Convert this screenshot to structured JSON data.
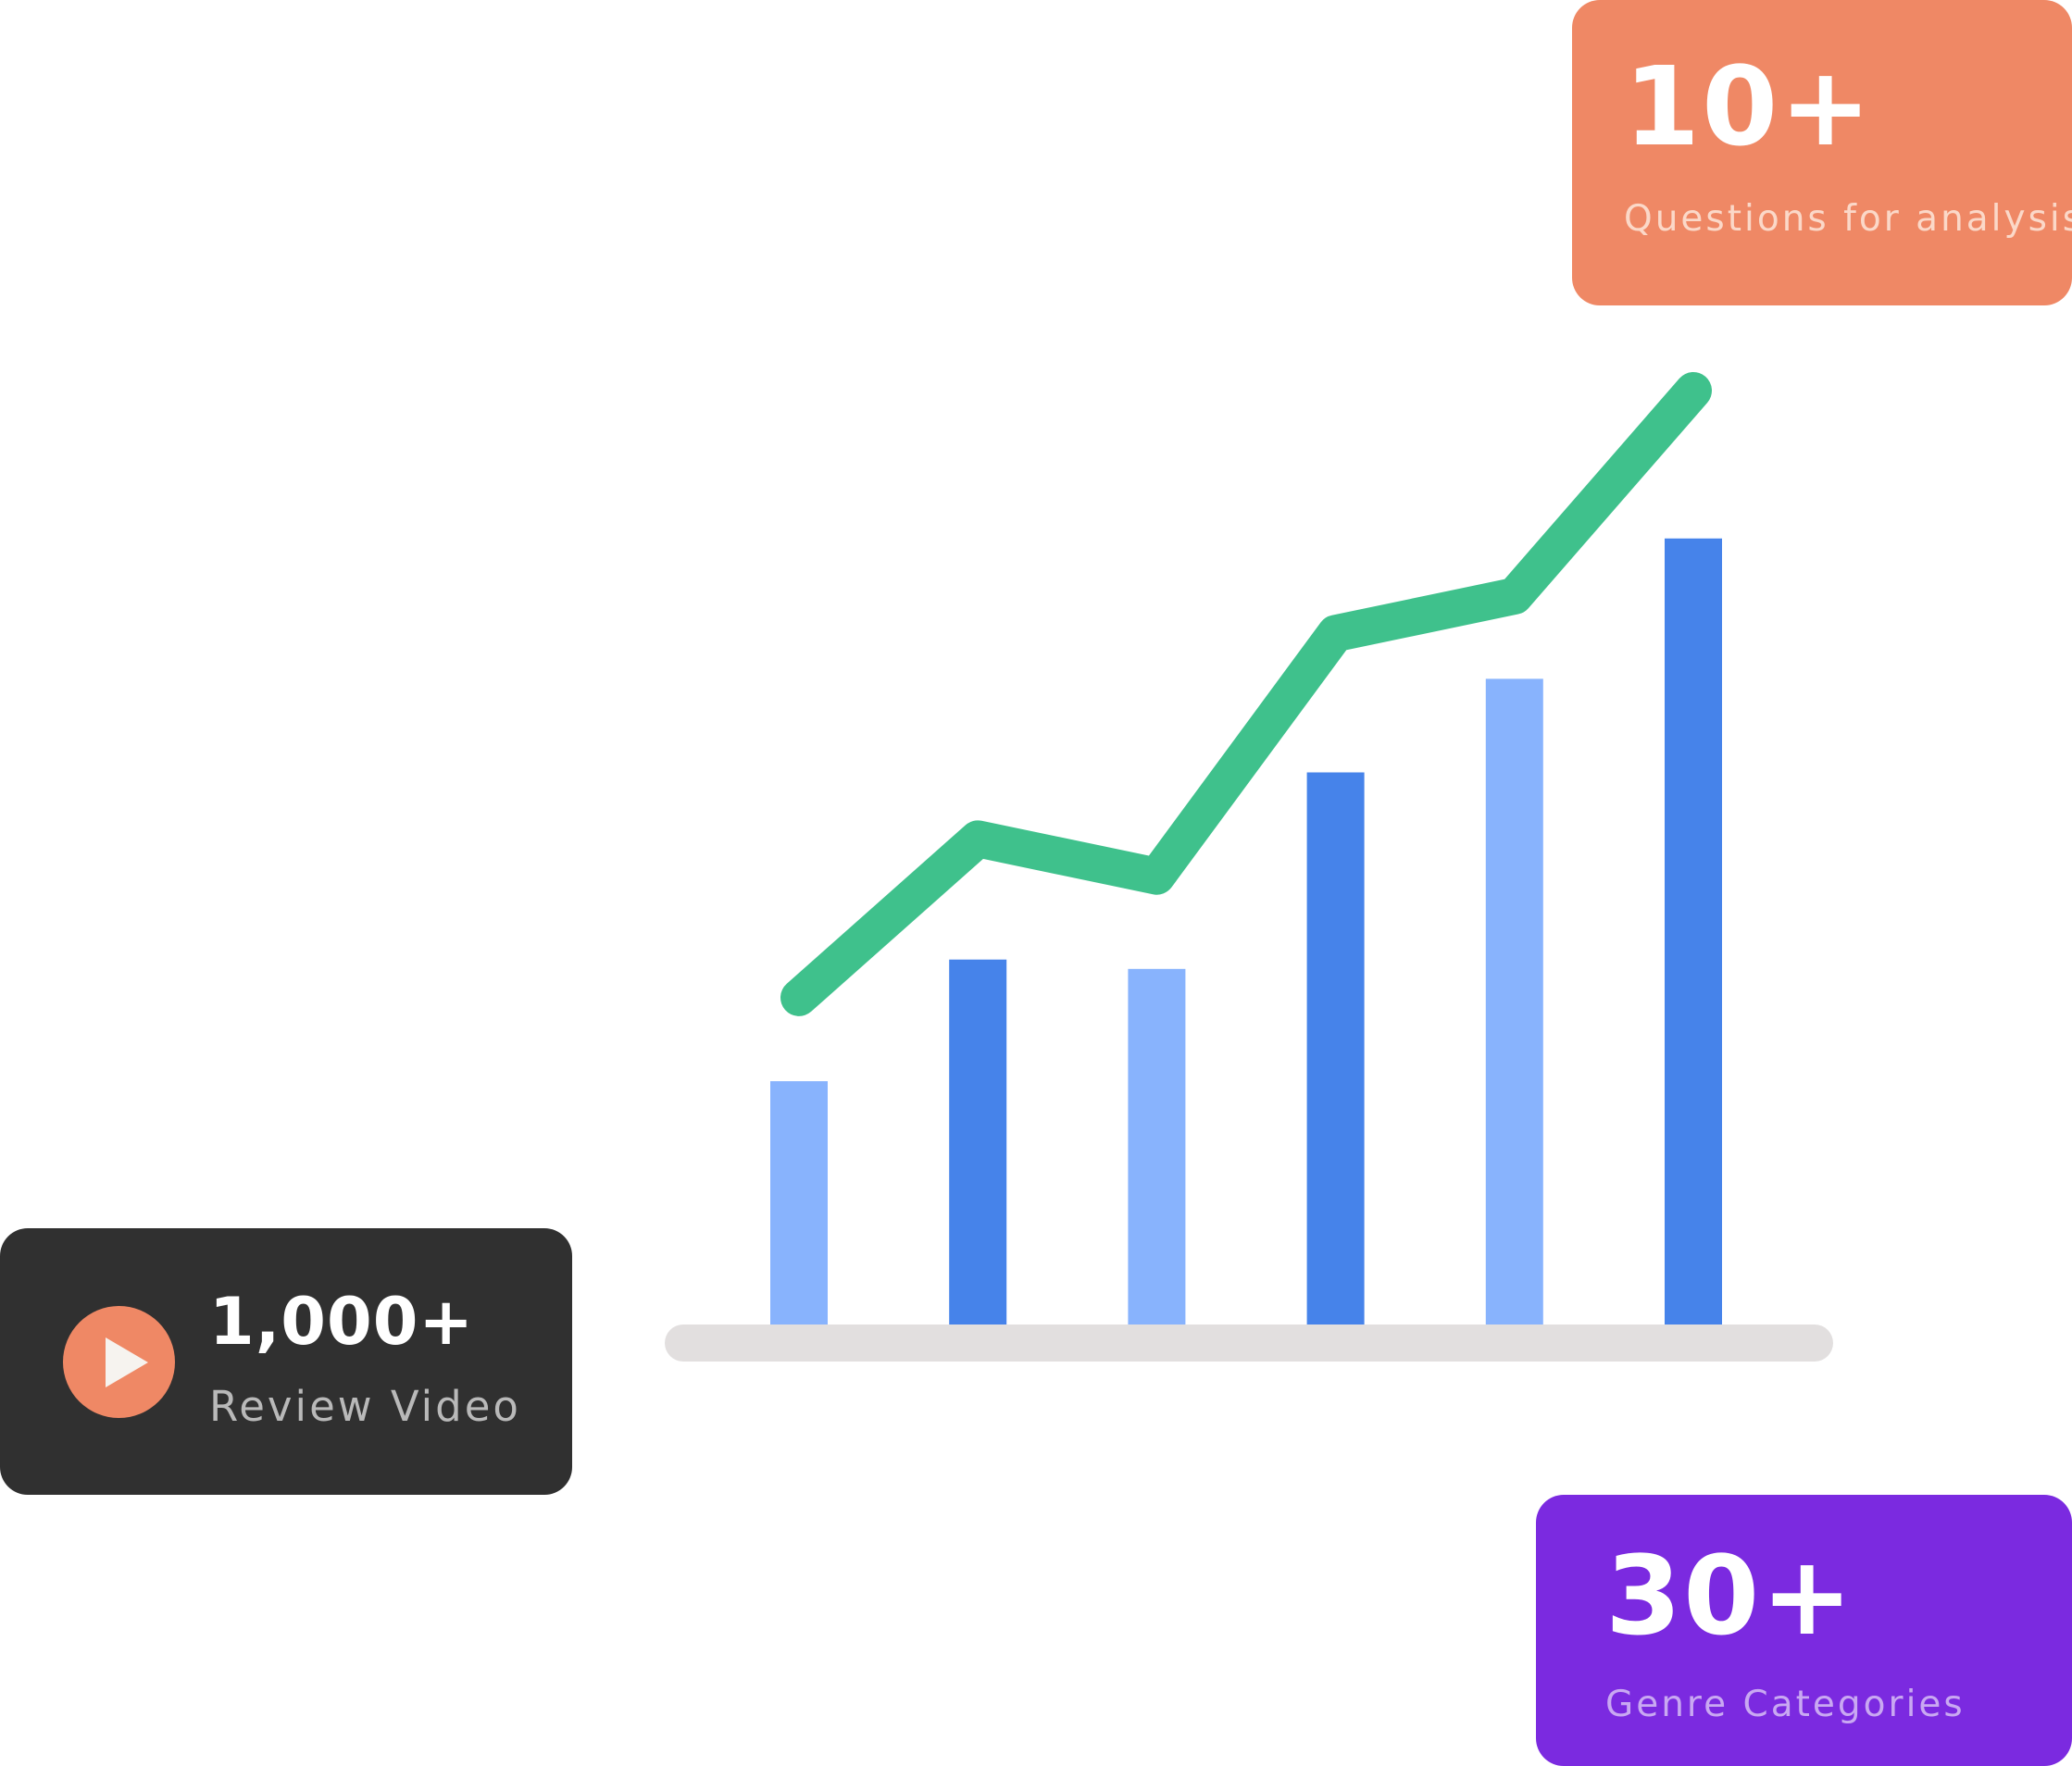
{
  "colors": {
    "bar_light": "#88b3fd",
    "bar_dark": "#4683ea",
    "trend_line": "#3fc18c",
    "baseline": "#e2dfdf",
    "questions_card": "#ef8865",
    "genres_card": "#7b2ae0",
    "video_card": "#303030",
    "play_button": "#ef8865"
  },
  "stats": {
    "questions": {
      "number": "10+",
      "caption": "Questions for analysis"
    },
    "genres": {
      "number": "30+",
      "caption": "Genre Categories"
    },
    "video": {
      "number": "1,000+",
      "caption": "Review Video",
      "icon": "play-icon"
    }
  },
  "chart_data": {
    "type": "bar",
    "categories": [
      "",
      "",
      "",
      "",
      "",
      ""
    ],
    "values": [
      26,
      39,
      38,
      59,
      69,
      84
    ],
    "bar_shades": [
      "light",
      "dark",
      "light",
      "dark",
      "light",
      "dark"
    ],
    "trend": [
      35,
      52,
      48,
      74,
      78,
      100
    ],
    "ylim": [
      0,
      100
    ],
    "grid": false
  }
}
